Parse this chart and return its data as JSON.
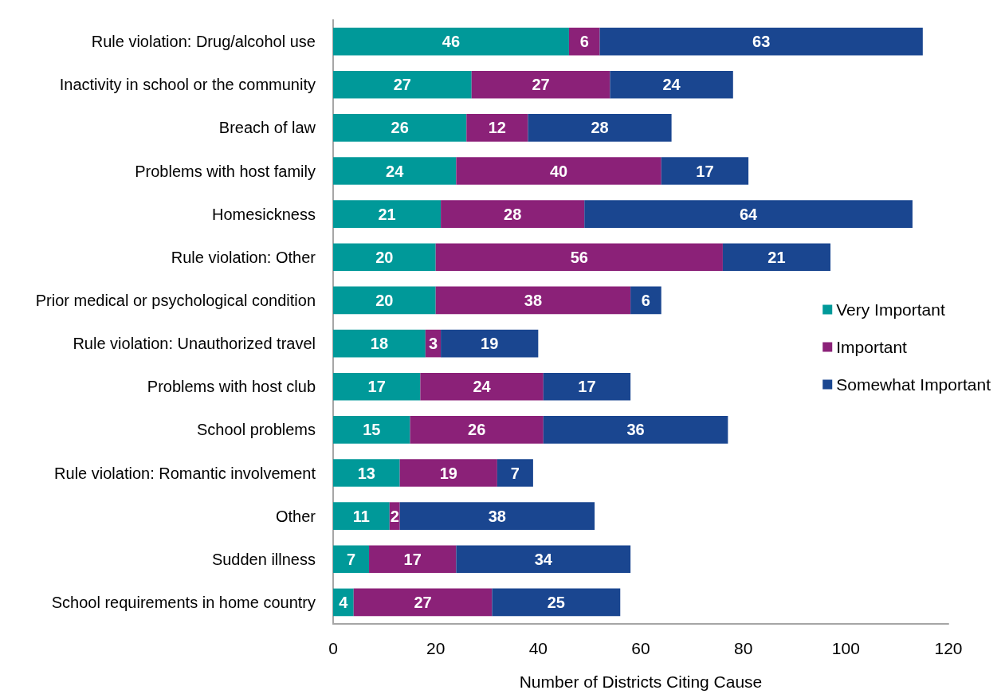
{
  "chart_data": {
    "type": "bar",
    "orientation": "horizontal",
    "stacked": true,
    "data_labels": true,
    "legend": "right",
    "grid": false,
    "xlabel": "Number of Districts Citing Cause",
    "xlim": [
      0,
      120
    ],
    "xticks": [
      0,
      20,
      40,
      60,
      80,
      100,
      120
    ],
    "categories": [
      "Rule violation: Drug/alcohol use",
      "Inactivity in school or the community",
      "Breach of law",
      "Problems with host family",
      "Homesickness",
      "Rule violation: Other",
      "Prior medical or psychological condition",
      "Rule violation: Unauthorized travel",
      "Problems with host club",
      "School problems",
      "Rule violation: Romantic involvement",
      "Other",
      "Sudden illness",
      "School requirements in home country"
    ],
    "series": [
      {
        "name": "Very Important",
        "color": "#009999",
        "values": [
          46,
          27,
          26,
          24,
          21,
          20,
          20,
          18,
          17,
          15,
          13,
          11,
          7,
          4
        ]
      },
      {
        "name": "Important",
        "color": "#8b2178",
        "values": [
          6,
          27,
          12,
          40,
          28,
          56,
          38,
          3,
          24,
          26,
          19,
          2,
          17,
          27
        ]
      },
      {
        "name": "Somewhat Important",
        "color": "#1a4690",
        "values": [
          63,
          24,
          28,
          17,
          64,
          21,
          6,
          19,
          17,
          36,
          7,
          38,
          34,
          25
        ]
      }
    ]
  }
}
